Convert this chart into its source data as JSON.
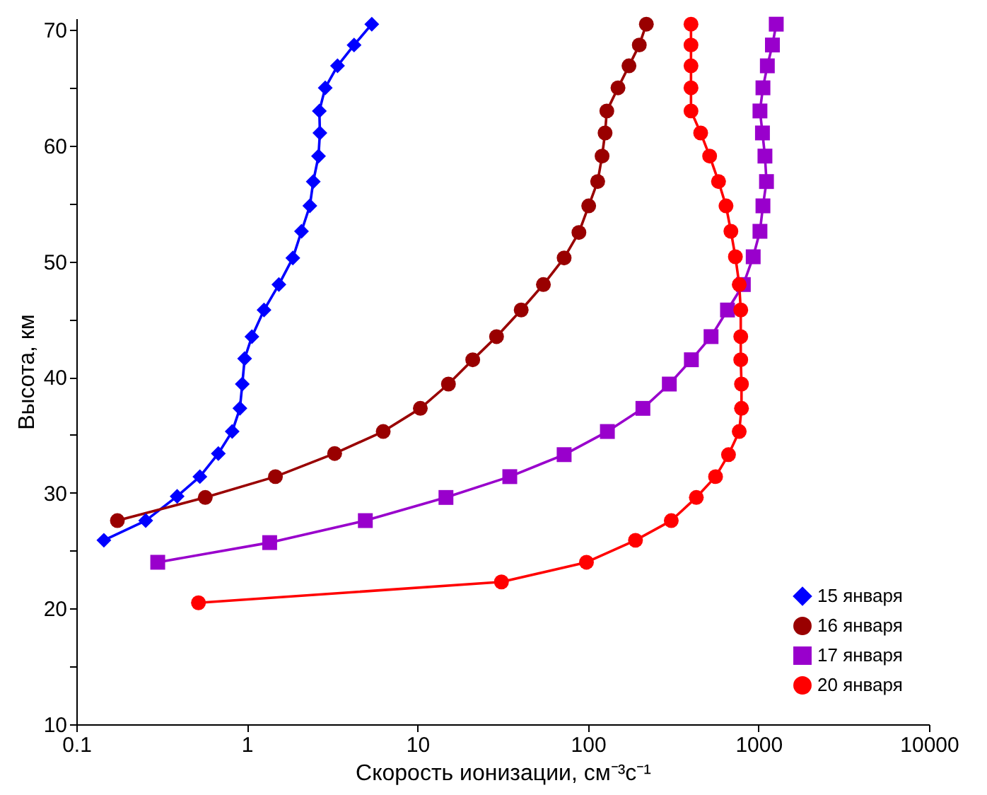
{
  "chart_data": {
    "type": "line",
    "xlabel": "Скорость ионизации, см⁻³с⁻¹",
    "ylabel": "Высота, км",
    "log": "x",
    "xlim": [
      0.1,
      10000
    ],
    "xticks": [
      0.1,
      1,
      10,
      100,
      1000,
      10000
    ],
    "ylim": [
      10,
      71
    ],
    "yticks": [
      10,
      {
        "value": 15,
        "label": null
      },
      20,
      {
        "value": 25,
        "label": null
      },
      30,
      {
        "value": 35,
        "label": null
      },
      40,
      {
        "value": 45,
        "label": null
      },
      50,
      {
        "value": 55,
        "label": null
      },
      60,
      {
        "value": 65,
        "label": null
      },
      70
    ],
    "grid": false,
    "legend": "bottom right",
    "line_style": "solid",
    "series": [
      {
        "name": "15 января",
        "color": "#0000ff",
        "marker": "diamond",
        "x": [
          0.145,
          0.255,
          0.39,
          0.53,
          0.68,
          0.82,
          0.91,
          0.94,
          0.97,
          1.07,
          1.26,
          1.54,
          1.86,
          2.09,
          2.34,
          2.45,
          2.63,
          2.68,
          2.66,
          2.88,
          3.4,
          4.25,
          5.4
        ],
        "values": [
          25.9,
          27.6,
          29.7,
          31.4,
          33.4,
          35.3,
          37.3,
          39.4,
          41.6,
          43.5,
          45.8,
          48.0,
          50.3,
          52.6,
          54.8,
          56.9,
          59.1,
          61.1,
          63.0,
          65.0,
          66.9,
          68.7,
          70.5
        ]
      },
      {
        "name": "16 января",
        "color": "#990000",
        "marker": "circle",
        "x": [
          0.174,
          0.57,
          1.47,
          3.27,
          6.3,
          10.4,
          15.2,
          21.1,
          29.1,
          40.6,
          54.8,
          72.5,
          88.5,
          101,
          114,
          121,
          126,
          129,
          150,
          174,
          200,
          220
        ],
        "values": [
          27.6,
          29.6,
          31.4,
          33.4,
          35.3,
          37.3,
          39.4,
          41.5,
          43.5,
          45.8,
          48.0,
          50.3,
          52.5,
          54.8,
          56.9,
          59.1,
          61.1,
          63.0,
          65.0,
          66.9,
          68.7,
          70.5
        ]
      },
      {
        "name": "17 января",
        "color": "#9900cc",
        "marker": "square",
        "x": [
          0.3,
          1.36,
          4.95,
          14.7,
          34.8,
          72.5,
          130,
          210,
          300,
          404,
          527,
          658,
          815,
          931,
          1020,
          1062,
          1114,
          1091,
          1055,
          1020,
          1062,
          1127,
          1207,
          1271
        ],
        "values": [
          24.0,
          25.7,
          27.6,
          29.6,
          31.4,
          33.3,
          35.3,
          37.3,
          39.4,
          41.5,
          43.5,
          45.8,
          48.0,
          50.4,
          52.6,
          54.8,
          56.9,
          59.1,
          61.1,
          63.0,
          65.0,
          66.9,
          68.7,
          70.5
        ]
      },
      {
        "name": "20 января",
        "color": "#ff0000",
        "marker": "circle",
        "x": [
          0.52,
          31.1,
          98,
          190,
          308,
          432,
          560,
          667,
          771,
          795,
          795,
          787,
          787,
          787,
          771,
          732,
          689,
          645,
          583,
          517,
          458,
          402,
          402,
          402,
          402,
          402
        ],
        "values": [
          20.5,
          22.3,
          24.0,
          25.9,
          27.6,
          29.6,
          31.4,
          33.3,
          35.3,
          37.3,
          39.4,
          41.5,
          43.5,
          45.8,
          48.0,
          50.4,
          52.6,
          54.8,
          56.9,
          59.1,
          61.1,
          63.0,
          65.0,
          66.9,
          68.7,
          70.5
        ]
      }
    ]
  }
}
